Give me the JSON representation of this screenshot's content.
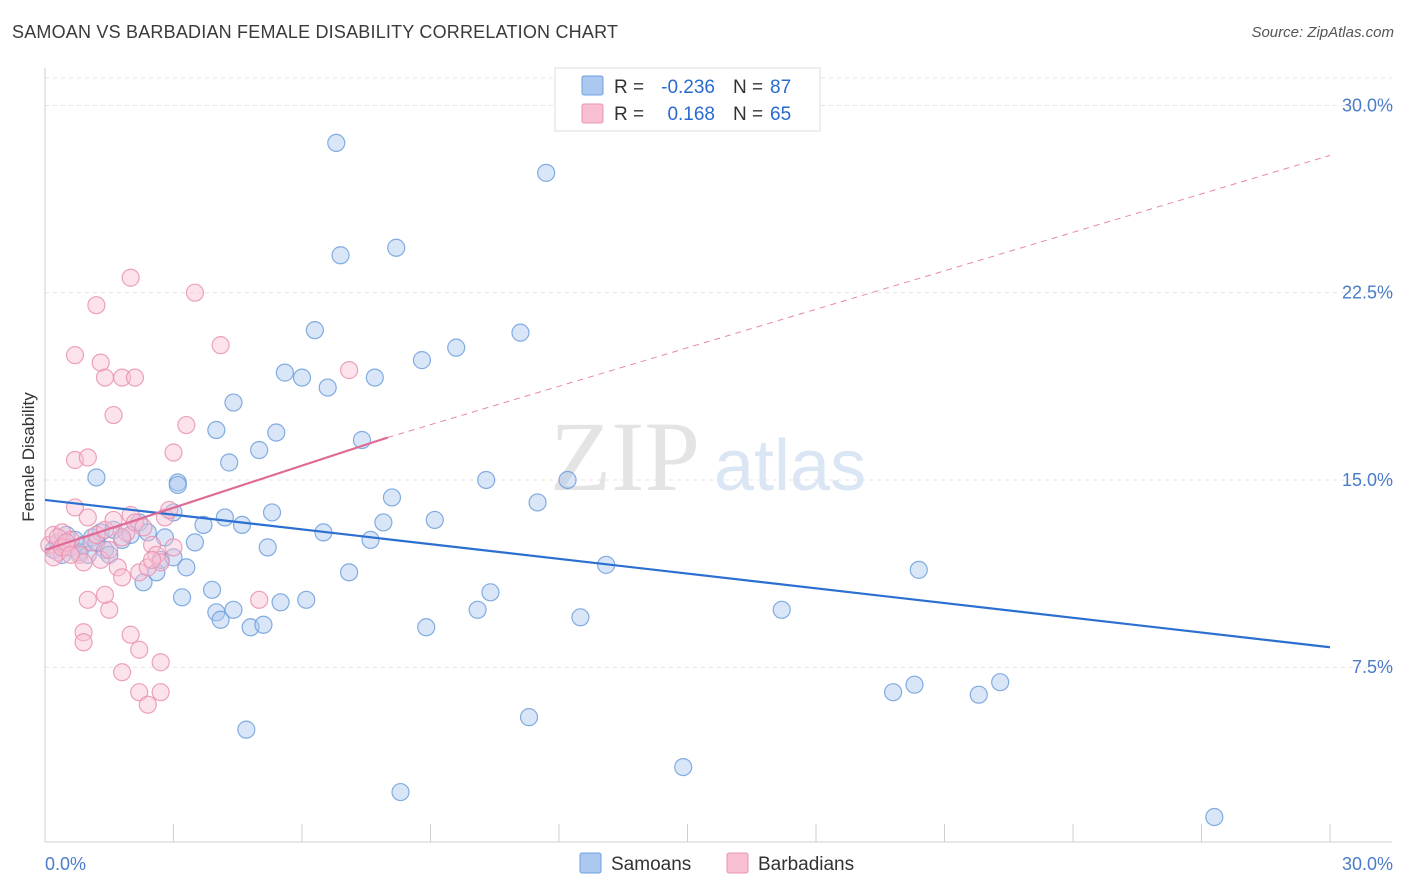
{
  "title": "SAMOAN VS BARBADIAN FEMALE DISABILITY CORRELATION CHART",
  "source": "Source: ZipAtlas.com",
  "watermark": {
    "zip": "ZIP",
    "atlas": "atlas"
  },
  "legend": {
    "rows": [
      {
        "r_label": "R =",
        "r_value": "-0.236",
        "n_label": "N =",
        "n_value": "87"
      },
      {
        "r_label": "R =",
        "r_value": "0.168",
        "n_label": "N =",
        "n_value": "65"
      }
    ]
  },
  "colors": {
    "samoans_fill": "#aac8f0",
    "samoans_stroke": "#6f9fdc",
    "samoans_line": "#2b6fd0",
    "barbadians_fill": "#f8bfd2",
    "barbadians_stroke": "#e893b2",
    "barbadians_line": "#e06a96",
    "grid": "#e6e6e6",
    "tick_label": "#4a7cc9"
  },
  "chart_data": {
    "type": "scatter",
    "title": "SAMOAN VS BARBADIAN FEMALE DISABILITY CORRELATION CHART",
    "xlabel": "",
    "ylabel": "Female Disability",
    "xlim": [
      0,
      30
    ],
    "ylim": [
      0.5,
      31.5
    ],
    "x_tick_labels": [
      {
        "value": 0,
        "label": "0.0%"
      },
      {
        "value": 30,
        "label": "30.0%"
      }
    ],
    "y_tick_labels": [
      {
        "value": 7.5,
        "label": "7.5%"
      },
      {
        "value": 15,
        "label": "15.0%"
      },
      {
        "value": 22.5,
        "label": "22.5%"
      },
      {
        "value": 30,
        "label": "30.0%"
      }
    ],
    "grid": true,
    "legend_position": "top-center",
    "series": [
      {
        "name": "Samoans",
        "r": -0.236,
        "n": 87,
        "trend": {
          "x": [
            0,
            30
          ],
          "y": [
            14.2,
            8.3
          ],
          "style": "solid"
        },
        "points": [
          [
            0.2,
            12.2
          ],
          [
            0.3,
            12.5
          ],
          [
            0.4,
            12.0
          ],
          [
            0.5,
            12.8
          ],
          [
            0.6,
            12.3
          ],
          [
            0.7,
            12.6
          ],
          [
            0.8,
            12.1
          ],
          [
            0.9,
            12.4
          ],
          [
            1.0,
            12.0
          ],
          [
            1.1,
            12.7
          ],
          [
            1.2,
            12.5
          ],
          [
            1.3,
            12.9
          ],
          [
            1.4,
            12.2
          ],
          [
            1.5,
            12.0
          ],
          [
            1.6,
            13.0
          ],
          [
            1.8,
            12.6
          ],
          [
            2.0,
            12.8
          ],
          [
            2.2,
            13.3
          ],
          [
            2.4,
            12.9
          ],
          [
            2.6,
            11.3
          ],
          [
            2.7,
            11.8
          ],
          [
            2.8,
            12.7
          ],
          [
            3.0,
            11.9
          ],
          [
            3.2,
            10.3
          ],
          [
            3.3,
            11.5
          ],
          [
            3.5,
            12.5
          ],
          [
            3.7,
            13.2
          ],
          [
            3.9,
            10.6
          ],
          [
            4.0,
            9.7
          ],
          [
            4.1,
            9.4
          ],
          [
            4.2,
            13.5
          ],
          [
            4.3,
            15.7
          ],
          [
            4.4,
            9.8
          ],
          [
            4.6,
            13.2
          ],
          [
            4.8,
            9.1
          ],
          [
            5.0,
            16.2
          ],
          [
            5.1,
            9.2
          ],
          [
            5.2,
            12.3
          ],
          [
            5.3,
            13.7
          ],
          [
            5.4,
            16.9
          ],
          [
            5.6,
            19.3
          ],
          [
            6.0,
            19.1
          ],
          [
            6.1,
            10.2
          ],
          [
            6.3,
            21.0
          ],
          [
            6.5,
            12.9
          ],
          [
            6.6,
            18.7
          ],
          [
            6.8,
            28.5
          ],
          [
            6.9,
            24.0
          ],
          [
            7.1,
            11.3
          ],
          [
            7.4,
            16.6
          ],
          [
            7.6,
            12.6
          ],
          [
            7.7,
            19.1
          ],
          [
            7.9,
            13.3
          ],
          [
            8.1,
            14.3
          ],
          [
            8.2,
            24.3
          ],
          [
            8.3,
            2.5
          ],
          [
            8.8,
            19.8
          ],
          [
            8.9,
            9.1
          ],
          [
            9.1,
            13.4
          ],
          [
            9.6,
            20.3
          ],
          [
            10.1,
            9.8
          ],
          [
            10.3,
            15.0
          ],
          [
            10.4,
            10.5
          ],
          [
            11.1,
            20.9
          ],
          [
            11.3,
            5.5
          ],
          [
            11.5,
            14.1
          ],
          [
            11.7,
            27.3
          ],
          [
            12.2,
            15.0
          ],
          [
            12.5,
            9.5
          ],
          [
            13.1,
            11.6
          ],
          [
            14.9,
            3.5
          ],
          [
            17.2,
            9.8
          ],
          [
            19.8,
            6.5
          ],
          [
            20.3,
            6.8
          ],
          [
            20.4,
            11.4
          ],
          [
            21.8,
            6.4
          ],
          [
            22.3,
            6.9
          ],
          [
            27.3,
            1.5
          ],
          [
            1.2,
            15.1
          ],
          [
            3.1,
            14.9
          ],
          [
            3.1,
            14.8
          ],
          [
            3.0,
            13.7
          ],
          [
            4.4,
            18.1
          ],
          [
            4.0,
            17.0
          ],
          [
            5.5,
            10.1
          ],
          [
            2.3,
            10.9
          ],
          [
            4.7,
            5.0
          ]
        ]
      },
      {
        "name": "Barbadians",
        "r": 0.168,
        "n": 65,
        "trend": {
          "x": [
            0,
            8
          ],
          "y": [
            12.2,
            16.7
          ],
          "style": "solid",
          "extension": {
            "x": [
              8,
              30
            ],
            "y": [
              16.7,
              28.0
            ],
            "style": "dashed"
          }
        },
        "points": [
          [
            0.1,
            12.4
          ],
          [
            0.2,
            12.8
          ],
          [
            0.3,
            12.1
          ],
          [
            0.4,
            12.9
          ],
          [
            0.5,
            12.3
          ],
          [
            0.6,
            12.6
          ],
          [
            0.7,
            13.9
          ],
          [
            0.8,
            12.0
          ],
          [
            0.9,
            11.7
          ],
          [
            1.0,
            13.5
          ],
          [
            1.1,
            12.5
          ],
          [
            1.2,
            12.8
          ],
          [
            1.3,
            11.8
          ],
          [
            1.4,
            13.0
          ],
          [
            1.5,
            12.2
          ],
          [
            1.6,
            13.4
          ],
          [
            1.7,
            11.5
          ],
          [
            1.8,
            11.1
          ],
          [
            1.9,
            12.9
          ],
          [
            2.0,
            13.6
          ],
          [
            2.1,
            13.3
          ],
          [
            2.2,
            11.3
          ],
          [
            2.3,
            13.1
          ],
          [
            2.4,
            11.5
          ],
          [
            2.5,
            12.4
          ],
          [
            2.6,
            12.0
          ],
          [
            2.7,
            11.7
          ],
          [
            2.8,
            13.5
          ],
          [
            2.9,
            13.8
          ],
          [
            3.0,
            12.3
          ],
          [
            0.7,
            15.8
          ],
          [
            1.0,
            15.9
          ],
          [
            0.7,
            20.0
          ],
          [
            1.3,
            19.7
          ],
          [
            1.4,
            19.1
          ],
          [
            1.8,
            19.1
          ],
          [
            2.1,
            19.1
          ],
          [
            1.6,
            17.6
          ],
          [
            3.3,
            17.2
          ],
          [
            3.0,
            16.1
          ],
          [
            3.5,
            22.5
          ],
          [
            2.0,
            23.1
          ],
          [
            1.2,
            22.0
          ],
          [
            4.1,
            20.4
          ],
          [
            7.1,
            19.4
          ],
          [
            1.0,
            10.2
          ],
          [
            1.5,
            9.8
          ],
          [
            0.9,
            8.9
          ],
          [
            0.9,
            8.5
          ],
          [
            2.0,
            8.8
          ],
          [
            2.2,
            8.2
          ],
          [
            1.8,
            7.3
          ],
          [
            2.7,
            7.7
          ],
          [
            2.2,
            6.5
          ],
          [
            2.4,
            6.0
          ],
          [
            2.7,
            6.5
          ],
          [
            1.4,
            10.4
          ],
          [
            2.5,
            11.8
          ],
          [
            5.0,
            10.2
          ],
          [
            0.2,
            11.9
          ],
          [
            0.3,
            12.7
          ],
          [
            0.4,
            12.3
          ],
          [
            0.5,
            12.5
          ],
          [
            0.6,
            12.0
          ],
          [
            1.8,
            12.7
          ]
        ]
      }
    ]
  }
}
